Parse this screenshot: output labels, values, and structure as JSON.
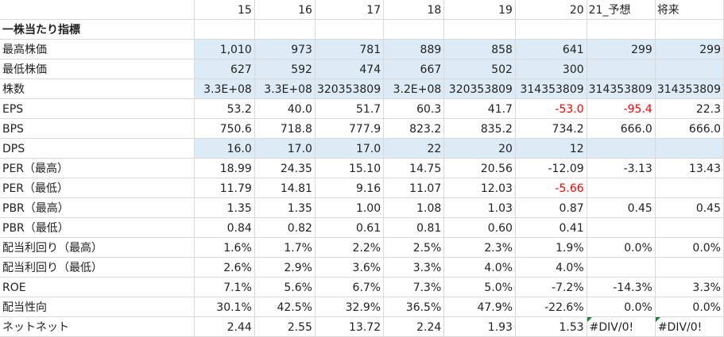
{
  "header": {
    "years": [
      "15",
      "16",
      "17",
      "18",
      "19",
      "20"
    ],
    "forecast": "21_予想",
    "future": "将来"
  },
  "section_title": "一株当たり指標",
  "rows": [
    {
      "label": "最高株価",
      "values": [
        "1,010",
        "973",
        "781",
        "889",
        "858",
        "641",
        "299",
        "299"
      ],
      "fill": [
        true,
        true,
        true,
        true,
        true,
        true,
        true,
        true
      ],
      "neg": [
        false,
        false,
        false,
        false,
        false,
        false,
        false,
        false
      ]
    },
    {
      "label": "最低株価",
      "values": [
        "627",
        "592",
        "474",
        "667",
        "502",
        "300",
        "",
        ""
      ],
      "fill": [
        true,
        true,
        true,
        true,
        true,
        true,
        true,
        true
      ],
      "neg": [
        false,
        false,
        false,
        false,
        false,
        false,
        false,
        false
      ]
    },
    {
      "label": "株数",
      "values": [
        "3.3E+08",
        "3.3E+08",
        "320353809",
        "3.2E+08",
        "320353809",
        "314353809",
        "314353809",
        "314353809"
      ],
      "fill": [
        true,
        true,
        true,
        true,
        true,
        true,
        true,
        true
      ],
      "neg": [
        false,
        false,
        false,
        false,
        false,
        false,
        false,
        false
      ]
    },
    {
      "label": "EPS",
      "values": [
        "53.2",
        "40.0",
        "51.7",
        "60.3",
        "41.7",
        "-53.0",
        "-95.4",
        "22.3"
      ],
      "fill": [
        false,
        false,
        false,
        false,
        false,
        false,
        false,
        false
      ],
      "neg": [
        false,
        false,
        false,
        false,
        false,
        true,
        true,
        false
      ]
    },
    {
      "label": "BPS",
      "values": [
        "750.6",
        "718.8",
        "777.9",
        "823.2",
        "835.2",
        "734.2",
        "666.0",
        "666.0"
      ],
      "fill": [
        false,
        false,
        false,
        false,
        false,
        false,
        false,
        false
      ],
      "neg": [
        false,
        false,
        false,
        false,
        false,
        false,
        false,
        false
      ]
    },
    {
      "label": "DPS",
      "values": [
        "16.0",
        "17.0",
        "17.0",
        "22",
        "20",
        "12",
        "",
        ""
      ],
      "fill": [
        true,
        true,
        true,
        true,
        true,
        true,
        true,
        true
      ],
      "neg": [
        false,
        false,
        false,
        false,
        false,
        false,
        false,
        false
      ]
    },
    {
      "label": "PER（最高）",
      "values": [
        "18.99",
        "24.35",
        "15.10",
        "14.75",
        "20.56",
        "-12.09",
        "-3.13",
        "13.43"
      ],
      "fill": [
        false,
        false,
        false,
        false,
        false,
        false,
        false,
        false
      ],
      "neg": [
        false,
        false,
        false,
        false,
        false,
        false,
        false,
        false
      ]
    },
    {
      "label": "PER（最低）",
      "values": [
        "11.79",
        "14.81",
        "9.16",
        "11.07",
        "12.03",
        "-5.66",
        "",
        ""
      ],
      "fill": [
        false,
        false,
        false,
        false,
        false,
        false,
        false,
        false
      ],
      "neg": [
        false,
        false,
        false,
        false,
        false,
        true,
        false,
        false
      ]
    },
    {
      "label": "PBR（最高）",
      "values": [
        "1.35",
        "1.35",
        "1.00",
        "1.08",
        "1.03",
        "0.87",
        "0.45",
        "0.45"
      ],
      "fill": [
        false,
        false,
        false,
        false,
        false,
        false,
        false,
        false
      ],
      "neg": [
        false,
        false,
        false,
        false,
        false,
        false,
        false,
        false
      ]
    },
    {
      "label": "PBR（最低）",
      "values": [
        "0.84",
        "0.82",
        "0.61",
        "0.81",
        "0.60",
        "0.41",
        "",
        ""
      ],
      "fill": [
        false,
        false,
        false,
        false,
        false,
        false,
        false,
        false
      ],
      "neg": [
        false,
        false,
        false,
        false,
        false,
        false,
        false,
        false
      ]
    },
    {
      "label": "配当利回り（最高）",
      "values": [
        "1.6%",
        "1.7%",
        "2.2%",
        "2.5%",
        "2.3%",
        "1.9%",
        "0.0%",
        "0.0%"
      ],
      "fill": [
        false,
        false,
        false,
        false,
        false,
        false,
        false,
        false
      ],
      "neg": [
        false,
        false,
        false,
        false,
        false,
        false,
        false,
        false
      ]
    },
    {
      "label": "配当利回り（最低）",
      "values": [
        "2.6%",
        "2.9%",
        "3.6%",
        "3.3%",
        "4.0%",
        "4.0%",
        "",
        ""
      ],
      "fill": [
        false,
        false,
        false,
        false,
        false,
        false,
        false,
        false
      ],
      "neg": [
        false,
        false,
        false,
        false,
        false,
        false,
        false,
        false
      ]
    },
    {
      "label": "ROE",
      "values": [
        "7.1%",
        "5.6%",
        "6.7%",
        "7.3%",
        "5.0%",
        "-7.2%",
        "-14.3%",
        "3.3%"
      ],
      "fill": [
        false,
        false,
        false,
        false,
        false,
        false,
        false,
        false
      ],
      "neg": [
        false,
        false,
        false,
        false,
        false,
        false,
        false,
        false
      ]
    },
    {
      "label": "配当性向",
      "values": [
        "30.1%",
        "42.5%",
        "32.9%",
        "36.5%",
        "47.9%",
        "-22.6%",
        "0.0%",
        "0.0%"
      ],
      "fill": [
        false,
        false,
        false,
        false,
        false,
        false,
        false,
        false
      ],
      "neg": [
        false,
        false,
        false,
        false,
        false,
        false,
        false,
        false
      ]
    },
    {
      "label": "ネットネット",
      "values": [
        "2.44",
        "2.55",
        "13.72",
        "2.24",
        "1.93",
        "1.53",
        "#DIV/0!",
        "#DIV/0!"
      ],
      "fill": [
        false,
        false,
        false,
        false,
        false,
        false,
        false,
        false
      ],
      "neg": [
        false,
        false,
        false,
        false,
        false,
        false,
        false,
        false
      ],
      "left": [
        false,
        false,
        false,
        false,
        false,
        false,
        true,
        true
      ],
      "tri": [
        false,
        false,
        false,
        false,
        false,
        false,
        true,
        true
      ]
    }
  ],
  "colors": {
    "fill": "#ddebf7",
    "negative": "#ff0000",
    "grid": "#d9d9d9",
    "error_marker": "#1e7e34"
  }
}
